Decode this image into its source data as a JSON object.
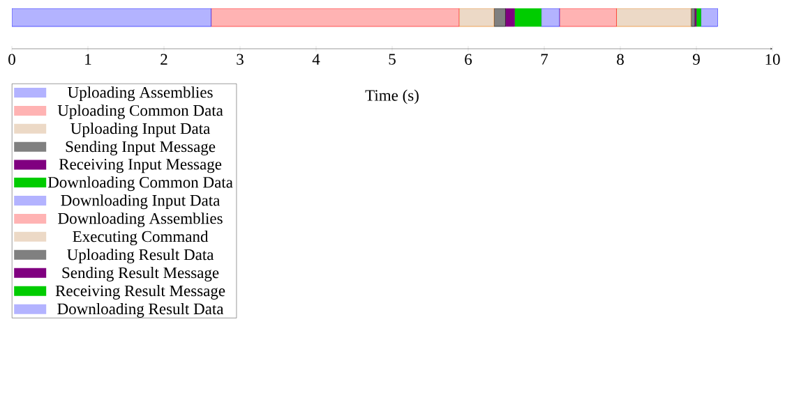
{
  "chart_data": {
    "type": "bar",
    "orientation": "horizontal",
    "stacked": true,
    "xlabel": "Time (s)",
    "categories": [
      null
    ],
    "tick_labels": "x",
    "legend": "bottom left",
    "xlim": [
      0,
      10
    ],
    "xticks": [
      0,
      1,
      2,
      3,
      4,
      5,
      6,
      7,
      8,
      9,
      10
    ],
    "series": [
      {
        "name": "Uploading Assemblies",
        "color": "#b3b3ff",
        "values": [
          2.62
        ]
      },
      {
        "name": "Uploading Common Data",
        "color": "#ffb3b3",
        "values": [
          3.26
        ]
      },
      {
        "name": "Uploading Input Data",
        "color": "#ecd9c6",
        "values": [
          0.46
        ]
      },
      {
        "name": "Sending Input Message",
        "color": "#808080",
        "values": [
          0.15
        ]
      },
      {
        "name": "Receiving Input Message",
        "color": "#800080",
        "values": [
          0.12
        ]
      },
      {
        "name": "Downloading Common Data",
        "color": "#00cc00",
        "values": [
          0.35
        ]
      },
      {
        "name": "Downloading Input Data",
        "color": "#b3b3ff",
        "values": [
          0.24
        ]
      },
      {
        "name": "Downloading Assemblies",
        "color": "#ffb3b3",
        "values": [
          0.75
        ]
      },
      {
        "name": "Executing Command",
        "color": "#ecd9c6",
        "values": [
          0.98
        ]
      },
      {
        "name": "Uploading Result Data",
        "color": "#808080",
        "values": [
          0.05
        ]
      },
      {
        "name": "Sending Result Message",
        "color": "#800080",
        "values": [
          0.02
        ]
      },
      {
        "name": "Receiving Result Message",
        "color": "#00cc00",
        "values": [
          0.06
        ]
      },
      {
        "name": "Downloading Result Data",
        "color": "#b3b3ff",
        "values": [
          0.22
        ]
      }
    ]
  }
}
